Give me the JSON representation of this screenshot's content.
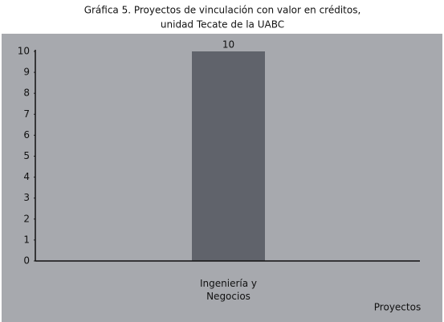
{
  "chart_data": {
    "type": "bar",
    "title": [
      "Gráfica 5. Proyectos de vinculación con valor en créditos,",
      "unidad Tecate de la UABC"
    ],
    "x_label": "Proyectos",
    "categories": [
      "Ingeniería y Negocios"
    ],
    "values": [
      10
    ],
    "color": "#60636b",
    "ylim": [
      0,
      10
    ],
    "yticks": [
      0,
      1,
      2,
      3,
      4,
      5,
      6,
      7,
      8,
      9,
      10
    ],
    "grid": false
  }
}
